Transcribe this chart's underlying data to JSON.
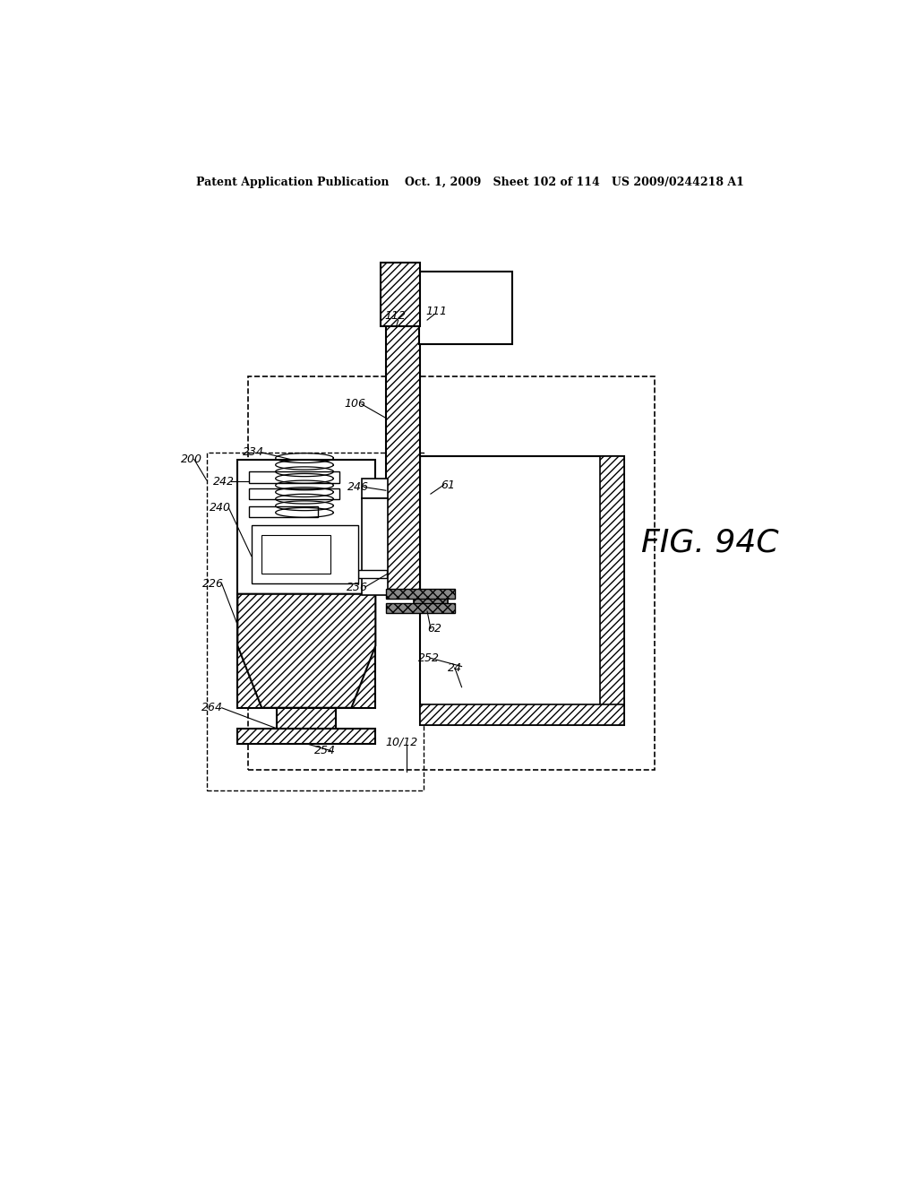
{
  "bg_color": "#ffffff",
  "header_text": "Patent Application Publication    Oct. 1, 2009   Sheet 102 of 114   US 2009/0244218 A1",
  "fig_label": "FIG. 94C",
  "fig_w": 10.24,
  "fig_h": 13.2,
  "dpi": 100
}
